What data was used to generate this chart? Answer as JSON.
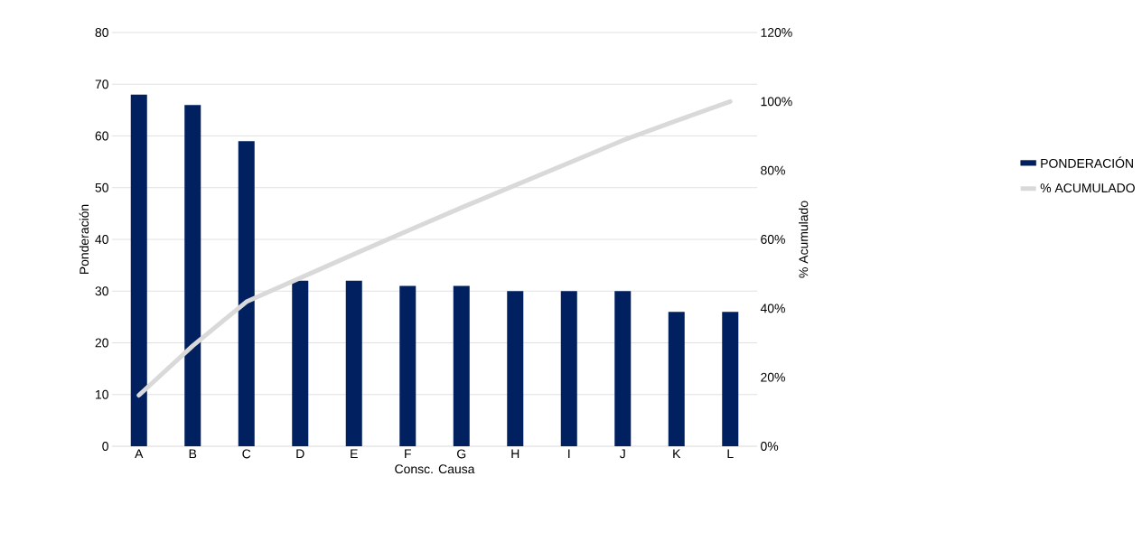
{
  "chart_data": {
    "type": "bar",
    "xlabel": "Consc. Causa",
    "ylabel": "Ponderación",
    "y2label": "% Acumulado",
    "categories": [
      "A",
      "B",
      "C",
      "D",
      "E",
      "F",
      "G",
      "H",
      "I",
      "J",
      "K",
      "L"
    ],
    "series": [
      {
        "name": "PONDERACIÓN",
        "color": "#002060",
        "values": [
          68,
          66,
          59,
          32,
          32,
          31,
          31,
          30,
          30,
          30,
          26,
          26
        ]
      },
      {
        "name": "% ACUMULADO",
        "type": "line",
        "axis": "y2",
        "color": "#d9d9d9",
        "values": [
          14.8,
          29.1,
          41.9,
          48.8,
          55.7,
          62.5,
          69.2,
          75.7,
          82.2,
          88.7,
          94.4,
          100
        ]
      }
    ],
    "ylim": [
      0,
      80
    ],
    "yticks": [
      0,
      10,
      20,
      30,
      40,
      50,
      60,
      70,
      80
    ],
    "y2lim": [
      0,
      120
    ],
    "y2ticks": [
      {
        "value": 0,
        "label": "0%"
      },
      {
        "value": 20,
        "label": "20%"
      },
      {
        "value": 40,
        "label": "40%"
      },
      {
        "value": 60,
        "label": "60%"
      },
      {
        "value": 80,
        "label": "80%"
      },
      {
        "value": 100,
        "label": "100%"
      },
      {
        "value": 120,
        "label": "120%"
      }
    ],
    "grid": "y",
    "legend": "right"
  }
}
